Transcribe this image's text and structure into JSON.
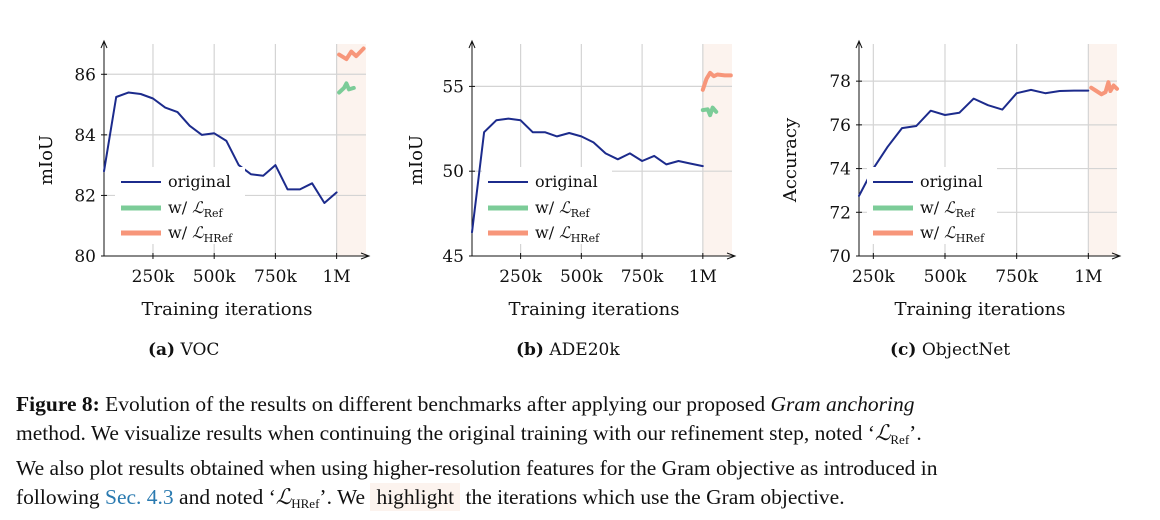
{
  "colors": {
    "original": "#1c2b8c",
    "ref": "#7ccc98",
    "href": "#f7967a",
    "highlight": "#fcf3ee",
    "grid": "#d4d4d4",
    "link": "#2a7ab0"
  },
  "chart_data": [
    {
      "type": "line",
      "id": "voc",
      "subcaption_letter": "(a)",
      "subcaption_name": "VOC",
      "xlabel": "Training iterations",
      "ylabel": "mIoU",
      "xlim": [
        50000,
        1120000
      ],
      "ylim": [
        80,
        87
      ],
      "xticks": [
        250000,
        500000,
        750000,
        1000000
      ],
      "xtick_labels": [
        "250k",
        "500k",
        "750k",
        "1M"
      ],
      "yticks": [
        80,
        82,
        84,
        86
      ],
      "ytick_labels": [
        "80",
        "82",
        "84",
        "86"
      ],
      "grid": true,
      "highlight_range": [
        1000000,
        1120000
      ],
      "legend": {
        "placement": "lower-left",
        "entries": [
          "original",
          "w/ ",
          "w/ "
        ],
        "symbols": [
          "",
          "ℒ",
          "ℒ"
        ],
        "subscripts": [
          "",
          "Ref",
          "HRef"
        ]
      },
      "series": [
        {
          "name": "original",
          "x": [
            50000,
            100000,
            150000,
            200000,
            250000,
            300000,
            350000,
            400000,
            450000,
            500000,
            550000,
            600000,
            650000,
            700000,
            750000,
            800000,
            850000,
            900000,
            950000,
            1000000
          ],
          "y": [
            82.8,
            85.25,
            85.4,
            85.35,
            85.2,
            84.9,
            84.75,
            84.3,
            84.0,
            84.05,
            83.8,
            83.0,
            82.7,
            82.65,
            83.0,
            82.2,
            82.2,
            82.4,
            81.75,
            82.1
          ]
        },
        {
          "name": "w/ L_Ref",
          "x": [
            1010000,
            1030000,
            1040000,
            1050000,
            1070000
          ],
          "y": [
            85.4,
            85.55,
            85.7,
            85.5,
            85.55
          ]
        },
        {
          "name": "w/ L_HRef",
          "x": [
            1010000,
            1040000,
            1060000,
            1080000,
            1110000
          ],
          "y": [
            86.65,
            86.5,
            86.75,
            86.6,
            86.85
          ]
        }
      ]
    },
    {
      "type": "line",
      "id": "ade20k",
      "subcaption_letter": "(b)",
      "subcaption_name": "ADE20k",
      "xlabel": "Training iterations",
      "ylabel": "mIoU",
      "xlim": [
        50000,
        1120000
      ],
      "ylim": [
        45,
        57.5
      ],
      "xticks": [
        250000,
        500000,
        750000,
        1000000
      ],
      "xtick_labels": [
        "250k",
        "500k",
        "750k",
        "1M"
      ],
      "yticks": [
        45,
        50,
        55
      ],
      "ytick_labels": [
        "45",
        "50",
        "55"
      ],
      "grid": true,
      "highlight_range": [
        1000000,
        1120000
      ],
      "legend": {
        "placement": "lower-left",
        "entries": [
          "original",
          "w/ ",
          "w/ "
        ],
        "symbols": [
          "",
          "ℒ",
          "ℒ"
        ],
        "subscripts": [
          "",
          "Ref",
          "HRef"
        ]
      },
      "series": [
        {
          "name": "original",
          "x": [
            50000,
            100000,
            150000,
            200000,
            250000,
            300000,
            350000,
            400000,
            450000,
            500000,
            550000,
            600000,
            650000,
            700000,
            750000,
            800000,
            850000,
            900000,
            950000,
            1000000
          ],
          "y": [
            46.4,
            52.3,
            53.0,
            53.1,
            53.0,
            52.3,
            52.3,
            52.05,
            52.25,
            52.05,
            51.7,
            51.05,
            50.7,
            51.05,
            50.6,
            50.9,
            50.4,
            50.6,
            50.45,
            50.3
          ]
        },
        {
          "name": "w/ L_Ref",
          "x": [
            1000000,
            1020000,
            1030000,
            1040000,
            1055000
          ],
          "y": [
            53.6,
            53.65,
            53.3,
            53.75,
            53.5
          ]
        },
        {
          "name": "w/ L_HRef",
          "x": [
            1000000,
            1015000,
            1030000,
            1045000,
            1060000,
            1090000,
            1115000
          ],
          "y": [
            54.8,
            55.45,
            55.8,
            55.6,
            55.7,
            55.65,
            55.65
          ]
        }
      ]
    },
    {
      "type": "line",
      "id": "objectnet",
      "subcaption_letter": "(c)",
      "subcaption_name": "ObjectNet",
      "xlabel": "Training iterations",
      "ylabel": "Accuracy",
      "xlim": [
        200000,
        1100000
      ],
      "ylim": [
        70,
        79.7
      ],
      "xticks": [
        250000,
        500000,
        750000,
        1000000
      ],
      "xtick_labels": [
        "250k",
        "500k",
        "750k",
        "1M"
      ],
      "yticks": [
        70,
        72,
        74,
        76,
        78
      ],
      "ytick_labels": [
        "70",
        "72",
        "74",
        "76",
        "78"
      ],
      "grid": true,
      "highlight_range": [
        1000000,
        1100000
      ],
      "legend": {
        "placement": "lower-left",
        "entries": [
          "original",
          "w/ ",
          "w/ "
        ],
        "symbols": [
          "",
          "ℒ",
          "ℒ"
        ],
        "subscripts": [
          "",
          "Ref",
          "HRef"
        ]
      },
      "series": [
        {
          "name": "original",
          "x": [
            200000,
            250000,
            300000,
            350000,
            400000,
            450000,
            500000,
            550000,
            600000,
            650000,
            700000,
            750000,
            800000,
            850000,
            900000,
            950000,
            1000000
          ],
          "y": [
            72.75,
            74.0,
            75.0,
            75.85,
            75.95,
            76.65,
            76.45,
            76.55,
            77.2,
            76.9,
            76.7,
            77.45,
            77.6,
            77.45,
            77.55,
            77.57,
            77.57
          ]
        },
        {
          "name": "w/ L_Ref",
          "x": [],
          "y": []
        },
        {
          "name": "w/ L_HRef",
          "x": [
            1010000,
            1028000,
            1046000,
            1060000,
            1070000,
            1077000,
            1088000,
            1100000
          ],
          "y": [
            77.7,
            77.55,
            77.4,
            77.5,
            77.95,
            77.55,
            77.8,
            77.65
          ]
        }
      ]
    }
  ],
  "caption": {
    "figure_label": "Figure 8:",
    "line1_a": " Evolution of the results on different benchmarks after applying our proposed ",
    "line1_italic": "Gram anchoring",
    "line2_a": "method.  We visualize results when continuing the original training with our refinement step, noted ‘",
    "line2_sym": "ℒ",
    "line2_sub": "Ref",
    "line2_b": "’.",
    "line3": "We also plot results obtained when using higher-resolution features for the Gram objective as introduced in",
    "line4_a": "following ",
    "line4_link": "Sec. 4.3",
    "line4_b": " and noted ‘",
    "line4_sym": "ℒ",
    "line4_sub": "HRef",
    "line4_c": "’. We ",
    "line4_highlight": "highlight",
    "line4_d": " the iterations which use the Gram objective."
  }
}
